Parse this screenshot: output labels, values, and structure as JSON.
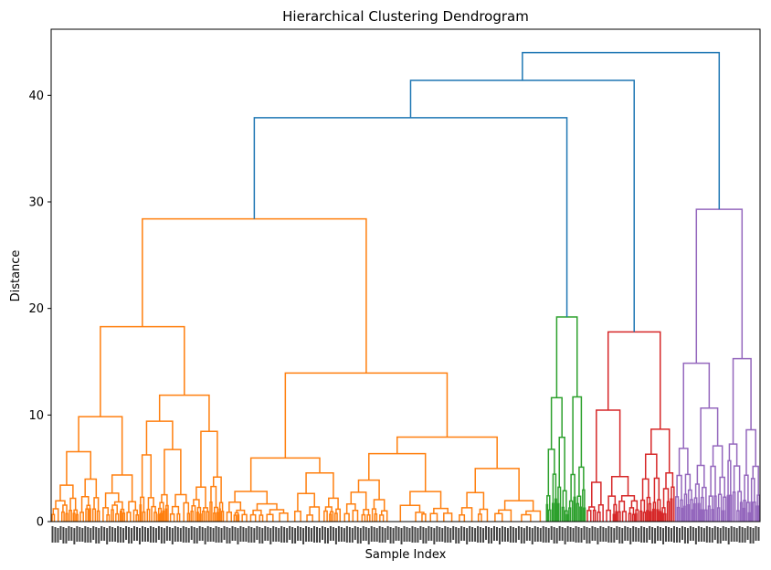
{
  "chart_data": {
    "type": "dendrogram",
    "title": "Hierarchical Clustering Dendrogram",
    "xlabel": "Sample Index",
    "ylabel": "Distance",
    "ylim": [
      0,
      46.2
    ],
    "yticks": [
      0,
      10,
      20,
      30,
      40
    ],
    "grid": false,
    "leaf_count_approx": 1000,
    "clusters": [
      {
        "color": "#ff7f0e",
        "leaf_span": [
          0.0,
          0.698
        ],
        "merge_height": 28.4
      },
      {
        "color": "#2ca02c",
        "leaf_span": [
          0.698,
          0.754
        ],
        "merge_height": 19.2
      },
      {
        "color": "#d62728",
        "leaf_span": [
          0.754,
          0.88
        ],
        "merge_height": 17.8
      },
      {
        "color": "#9467bd",
        "leaf_span": [
          0.88,
          1.0
        ],
        "merge_height": 29.3
      }
    ],
    "top_level_color": "#1f77b4",
    "top_merges": [
      {
        "joins": [
          "orange",
          "green"
        ],
        "height": 37.9
      },
      {
        "joins": [
          "orange+green",
          "red"
        ],
        "height": 41.4
      },
      {
        "joins": [
          "orange+green+red",
          "purple"
        ],
        "height": 44.0
      }
    ],
    "sub_merges": {
      "orange": [
        {
          "height": 28.4
        },
        {
          "height": 19.5
        },
        {
          "height": 18.4
        },
        {
          "height": 13.8
        },
        {
          "height": 12.3
        },
        {
          "height": 11.9
        },
        {
          "height": 11.1
        },
        {
          "height": 10.1
        },
        {
          "height": 9.8
        },
        {
          "height": 9.5
        },
        {
          "height": 9.0
        },
        {
          "height": 8.5
        },
        {
          "height": 7.9
        },
        {
          "height": 7.2
        },
        {
          "height": 7.0
        },
        {
          "height": 6.5
        },
        {
          "height": 6.4
        },
        {
          "height": 6.2
        },
        {
          "height": 6.0
        },
        {
          "height": 5.3
        }
      ],
      "green": [
        {
          "height": 19.2
        },
        {
          "height": 10.7
        },
        {
          "height": 9.3
        },
        {
          "height": 7.4
        },
        {
          "height": 6.1
        }
      ],
      "red": [
        {
          "height": 17.8
        },
        {
          "height": 13.1
        },
        {
          "height": 9.1
        },
        {
          "height": 8.4
        },
        {
          "height": 7.2
        },
        {
          "height": 6.8
        }
      ],
      "purple": [
        {
          "height": 29.3
        },
        {
          "height": 12.2
        },
        {
          "height": 12.1
        },
        {
          "height": 9.7
        },
        {
          "height": 7.5
        },
        {
          "height": 7.3
        },
        {
          "height": 6.9
        }
      ]
    }
  }
}
